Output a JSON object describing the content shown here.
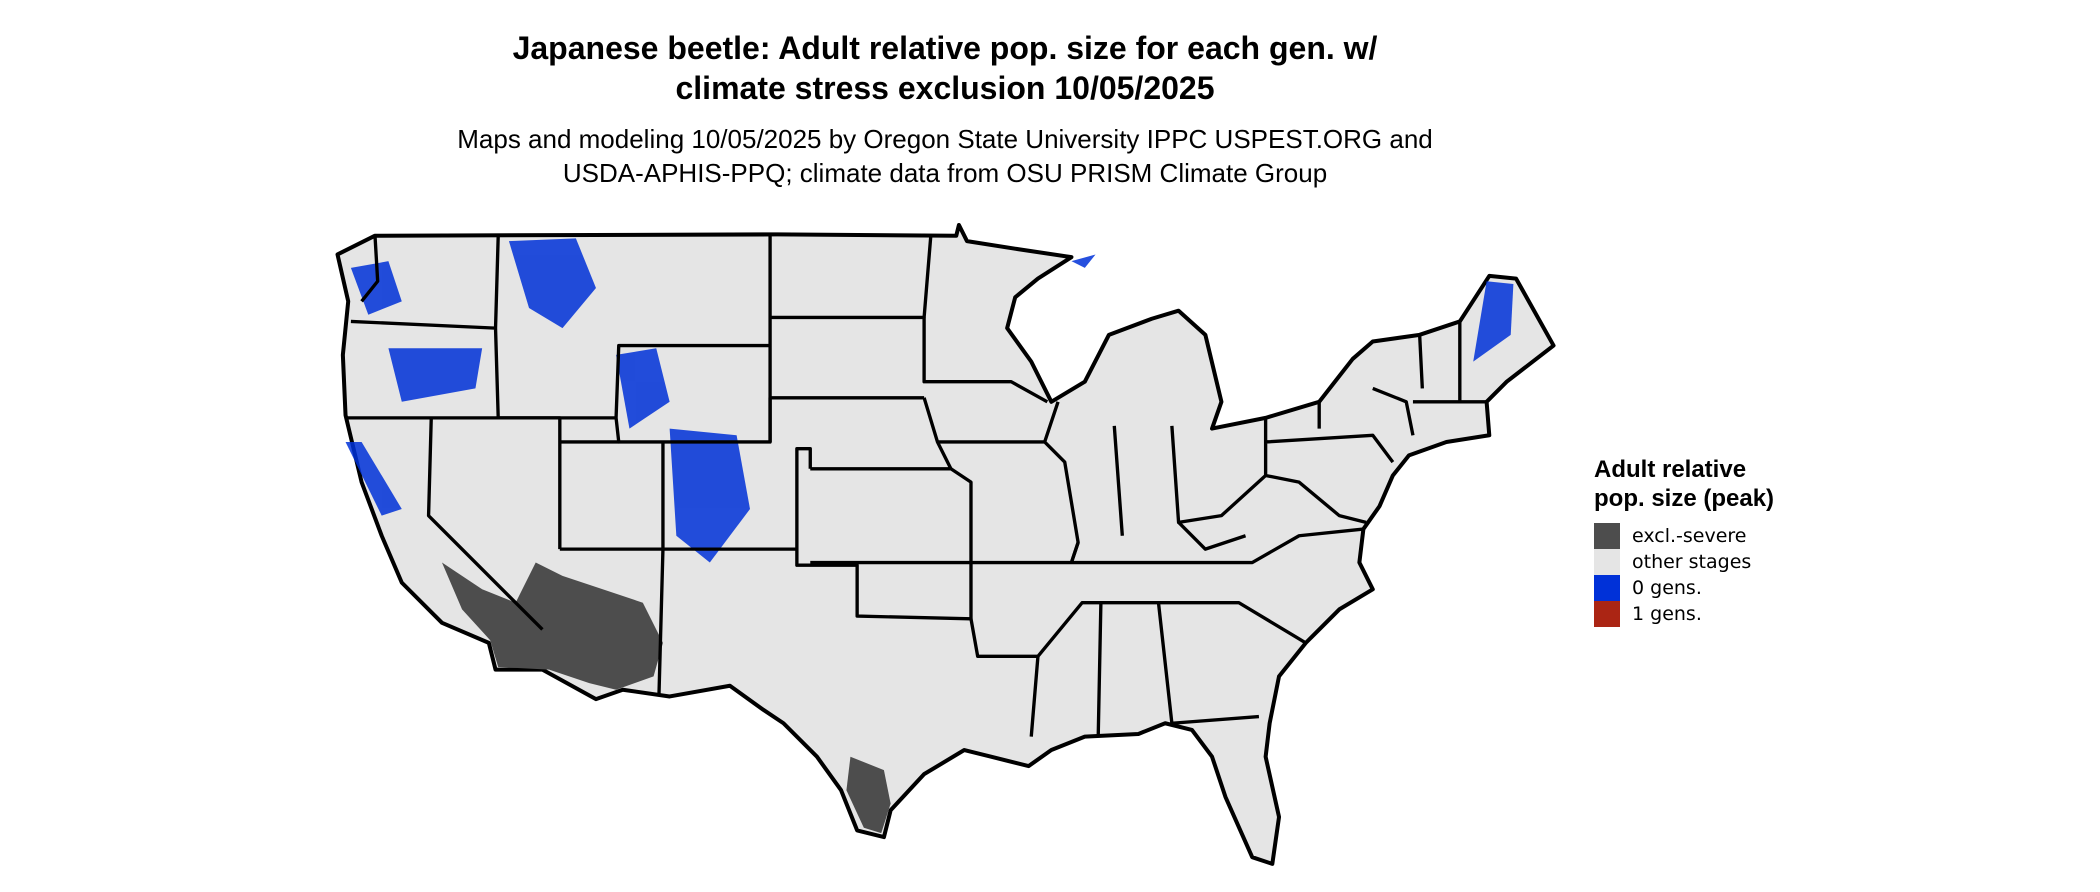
{
  "title_line1": "Japanese beetle: Adult relative pop. size for each gen. w/",
  "title_line2": "climate stress exclusion 10/05/2025",
  "subtitle_line1": "Maps and modeling 10/05/2025 by Oregon State University IPPC USPEST.ORG and",
  "subtitle_line2": "USDA-APHIS-PPQ; climate data from OSU PRISM Climate Group",
  "legend": {
    "title": "Adult relative pop. size (peak)",
    "items": [
      {
        "label": "excl.-severe",
        "color": "#4d4d4d"
      },
      {
        "label": "other stages",
        "color": "#e5e5e5"
      },
      {
        "label": "0 gens.",
        "color": "#0031d8"
      },
      {
        "label": "1 gens.",
        "color": "#ab2514"
      }
    ]
  },
  "colors": {
    "land": "#e5e5e5",
    "border": "#000000",
    "excluded": "#4d4d4d",
    "zero_gens": "#0031d8",
    "background": "#ffffff"
  }
}
